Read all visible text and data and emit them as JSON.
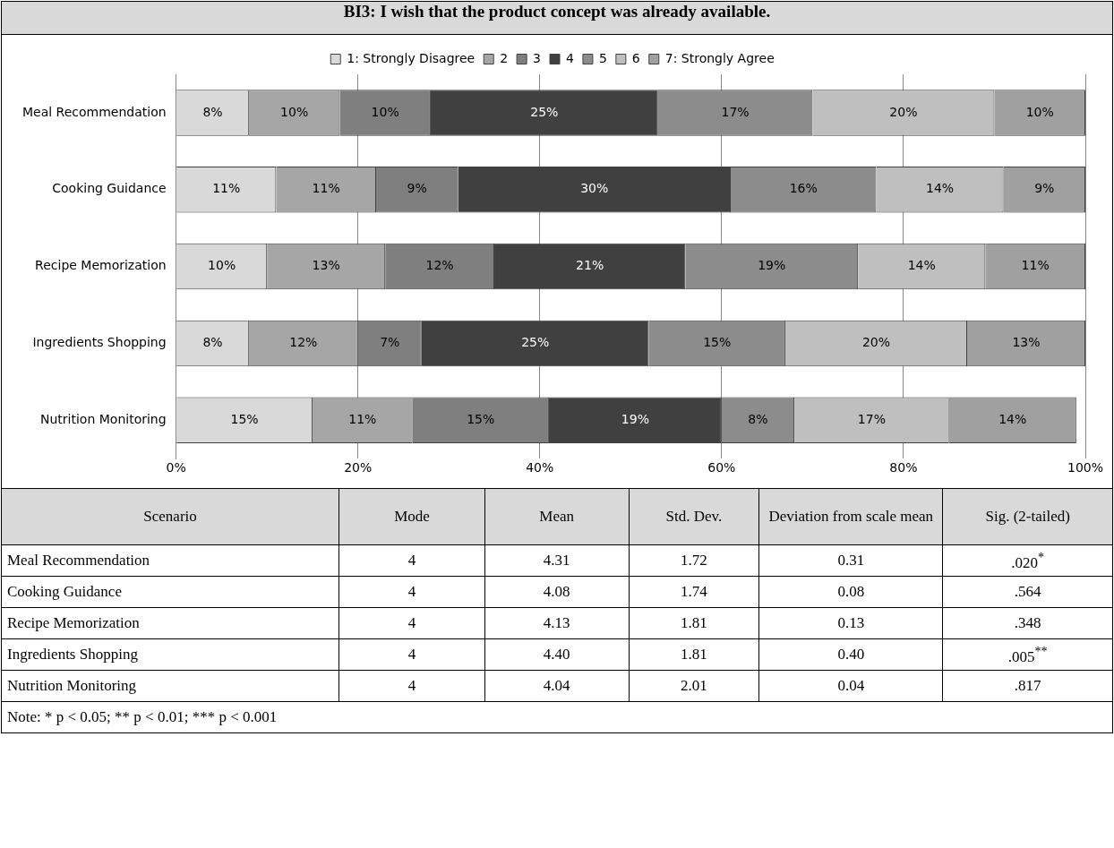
{
  "chart_data": [
    {
      "type": "bar",
      "orientation": "horizontal",
      "stacked": true,
      "title": "BI3: I wish that the product concept was already available.",
      "categories": [
        "Meal Recommendation",
        "Cooking Guidance",
        "Recipe Memorization",
        "Ingredients Shopping",
        "Nutrition Monitoring"
      ],
      "series": [
        {
          "name": "1: Strongly Disagree",
          "color": "#d9d9d9",
          "values": [
            8,
            11,
            10,
            8,
            15
          ],
          "value_labels": [
            "8%",
            "11%",
            "10%",
            "8%",
            "15%"
          ]
        },
        {
          "name": "2",
          "color": "#a6a6a6",
          "values": [
            10,
            11,
            13,
            12,
            11
          ],
          "value_labels": [
            "10%",
            "11%",
            "13%",
            "12%",
            "11%"
          ]
        },
        {
          "name": "3",
          "color": "#7f7f7f",
          "values": [
            10,
            9,
            12,
            7,
            15
          ],
          "value_labels": [
            "10%",
            "9%",
            "12%",
            "7%",
            "15%"
          ]
        },
        {
          "name": "4",
          "color": "#404040",
          "values": [
            25,
            30,
            21,
            25,
            19
          ],
          "value_labels": [
            "25%",
            "30%",
            "21%",
            "25%",
            "19%"
          ]
        },
        {
          "name": "5",
          "color": "#8c8c8c",
          "values": [
            17,
            16,
            19,
            15,
            8
          ],
          "value_labels": [
            "17%",
            "16%",
            "19%",
            "15%",
            "8%"
          ]
        },
        {
          "name": "6",
          "color": "#bfbfbf",
          "values": [
            20,
            14,
            14,
            20,
            17
          ],
          "value_labels": [
            "20%",
            "14%",
            "14%",
            "20%",
            "17%"
          ]
        },
        {
          "name": "7: Strongly Agree",
          "color": "#a0a0a0",
          "values": [
            10,
            9,
            11,
            13,
            14
          ],
          "value_labels": [
            "10%",
            "9%",
            "11%",
            "13%",
            "14%"
          ]
        }
      ],
      "xlim": [
        0,
        100
      ],
      "xticks": [
        {
          "value": 0,
          "label": "0%"
        },
        {
          "value": 20,
          "label": "20%"
        },
        {
          "value": 40,
          "label": "40%"
        },
        {
          "value": 60,
          "label": "60%"
        },
        {
          "value": 80,
          "label": "80%"
        },
        {
          "value": 100,
          "label": "100%"
        }
      ],
      "grid": "x",
      "legend": "top"
    },
    {
      "type": "other",
      "annotations": [
        "Scenario",
        "Mode",
        "Mean",
        "Std. Dev.",
        "Deviation from scale mean",
        "Sig. (2-tailed)",
        "Meal Recommendation",
        "4",
        "4.31",
        "1.72",
        "0.31",
        ".020$^{*}$",
        "Cooking Guidance",
        "4",
        "4.08",
        "1.74",
        "0.08",
        ".564",
        "Recipe Memorization",
        "4",
        "4.13",
        "1.81",
        "0.13",
        ".348",
        "Ingredients Shopping",
        "4",
        "4.40",
        "1.81",
        "0.40",
        ".005$^{**}$",
        "Nutrition Monitoring",
        "4",
        "4.04",
        "2.01",
        "0.04",
        ".817",
        "Note: * p < 0.05; ** p < 0.01; *** p < 0.001"
      ]
    }
  ]
}
